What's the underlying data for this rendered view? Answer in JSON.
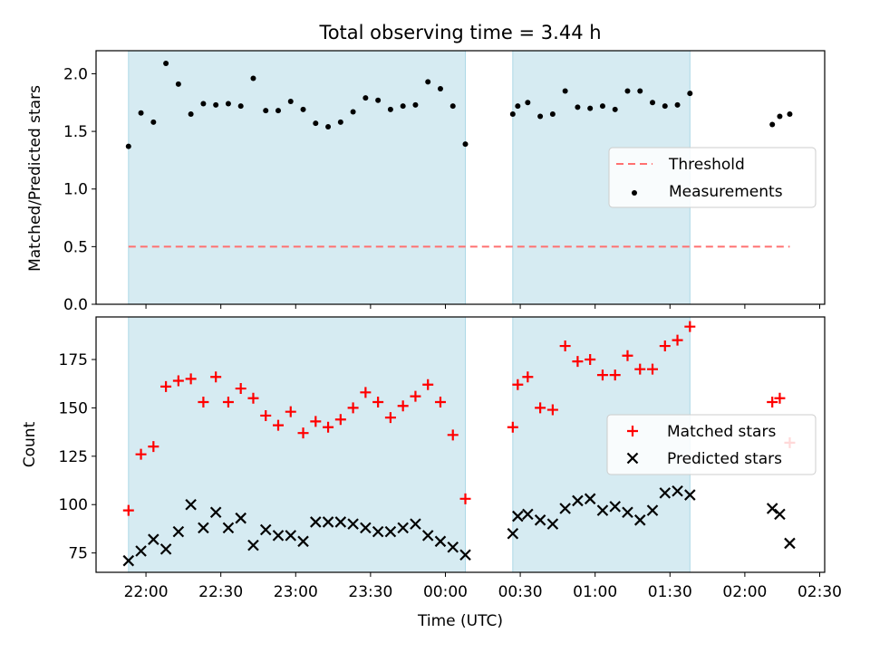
{
  "chart_data": [
    {
      "type": "scatter",
      "title": "Total observing time = 3.44 h",
      "ylabel": "Matched/Predicted stars",
      "xlabel": "",
      "ylim": [
        0,
        2.2
      ],
      "yticks": [
        "0.0",
        "0.5",
        "1.0",
        "1.5",
        "2.0"
      ],
      "shaded_intervals": [
        [
          "21:53",
          "00:08"
        ],
        [
          "00:27",
          "01:38"
        ]
      ],
      "threshold": {
        "name": "Threshold",
        "value": 0.5,
        "x_range": [
          "21:53",
          "02:18"
        ]
      },
      "legend_position": "center-right",
      "series": [
        {
          "name": "Measurements",
          "x": [
            "21:53",
            "21:58",
            "22:03",
            "22:08",
            "22:13",
            "22:18",
            "22:23",
            "22:28",
            "22:33",
            "22:38",
            "22:43",
            "22:48",
            "22:53",
            "22:58",
            "23:03",
            "23:08",
            "23:13",
            "23:18",
            "23:23",
            "23:28",
            "23:33",
            "23:38",
            "23:43",
            "23:48",
            "23:53",
            "23:58",
            "00:03",
            "00:08",
            "00:27",
            "00:29",
            "00:33",
            "00:38",
            "00:43",
            "00:48",
            "00:53",
            "00:58",
            "01:03",
            "01:08",
            "01:13",
            "01:18",
            "01:23",
            "01:28",
            "01:33",
            "01:38",
            "02:11",
            "02:14",
            "02:18"
          ],
          "y": [
            1.37,
            1.66,
            1.58,
            2.09,
            1.91,
            1.65,
            1.74,
            1.73,
            1.74,
            1.72,
            1.96,
            1.68,
            1.68,
            1.76,
            1.69,
            1.57,
            1.54,
            1.58,
            1.67,
            1.79,
            1.77,
            1.69,
            1.72,
            1.73,
            1.93,
            1.87,
            1.72,
            1.39,
            1.65,
            1.72,
            1.75,
            1.63,
            1.65,
            1.85,
            1.71,
            1.7,
            1.72,
            1.69,
            1.85,
            1.85,
            1.75,
            1.72,
            1.73,
            1.83,
            1.56,
            1.63,
            1.65
          ]
        }
      ]
    },
    {
      "type": "scatter",
      "title": "",
      "xlabel": "Time (UTC)",
      "ylabel": "Count",
      "ylim": [
        65,
        197
      ],
      "yticks": [
        "75",
        "100",
        "125",
        "150",
        "175"
      ],
      "xlim": [
        "21:40",
        "02:32"
      ],
      "xticks": [
        "22:00",
        "22:30",
        "23:00",
        "23:30",
        "00:00",
        "00:30",
        "01:00",
        "01:30",
        "02:00",
        "02:30"
      ],
      "shaded_intervals": [
        [
          "21:53",
          "00:08"
        ],
        [
          "00:27",
          "01:38"
        ]
      ],
      "legend_position": "center-right",
      "series": [
        {
          "name": "Matched stars",
          "x": [
            "21:53",
            "21:58",
            "22:03",
            "22:08",
            "22:13",
            "22:18",
            "22:23",
            "22:28",
            "22:33",
            "22:38",
            "22:43",
            "22:48",
            "22:53",
            "22:58",
            "23:03",
            "23:08",
            "23:13",
            "23:18",
            "23:23",
            "23:28",
            "23:33",
            "23:38",
            "23:43",
            "23:48",
            "23:53",
            "23:58",
            "00:03",
            "00:08",
            "00:27",
            "00:29",
            "00:33",
            "00:38",
            "00:43",
            "00:48",
            "00:53",
            "00:58",
            "01:03",
            "01:08",
            "01:13",
            "01:18",
            "01:23",
            "01:28",
            "01:33",
            "01:38",
            "02:11",
            "02:14",
            "02:18"
          ],
          "y": [
            97,
            126,
            130,
            161,
            164,
            165,
            153,
            166,
            153,
            160,
            155,
            146,
            141,
            148,
            137,
            143,
            140,
            144,
            150,
            158,
            153,
            145,
            151,
            156,
            162,
            153,
            136,
            103,
            140,
            162,
            166,
            150,
            149,
            182,
            174,
            175,
            167,
            167,
            177,
            170,
            170,
            182,
            185,
            192,
            153,
            155,
            132
          ]
        },
        {
          "name": "Predicted stars",
          "x": [
            "21:53",
            "21:58",
            "22:03",
            "22:08",
            "22:13",
            "22:18",
            "22:23",
            "22:28",
            "22:33",
            "22:38",
            "22:43",
            "22:48",
            "22:53",
            "22:58",
            "23:03",
            "23:08",
            "23:13",
            "23:18",
            "23:23",
            "23:28",
            "23:33",
            "23:38",
            "23:43",
            "23:48",
            "23:53",
            "23:58",
            "00:03",
            "00:08",
            "00:27",
            "00:29",
            "00:33",
            "00:38",
            "00:43",
            "00:48",
            "00:53",
            "00:58",
            "01:03",
            "01:08",
            "01:13",
            "01:18",
            "01:23",
            "01:28",
            "01:33",
            "01:38",
            "02:11",
            "02:14",
            "02:18"
          ],
          "y": [
            71,
            76,
            82,
            77,
            86,
            100,
            88,
            96,
            88,
            93,
            79,
            87,
            84,
            84,
            81,
            91,
            91,
            91,
            90,
            88,
            86,
            86,
            88,
            90,
            84,
            81,
            78,
            74,
            85,
            94,
            95,
            92,
            90,
            98,
            102,
            103,
            97,
            99,
            96,
            92,
            97,
            106,
            107,
            105,
            98,
            95,
            80
          ]
        }
      ]
    }
  ],
  "colors": {
    "shade": "#add8e6",
    "threshold": "#ff7070",
    "matched": "#ff0000",
    "predicted": "#000000",
    "measurements": "#000000"
  }
}
